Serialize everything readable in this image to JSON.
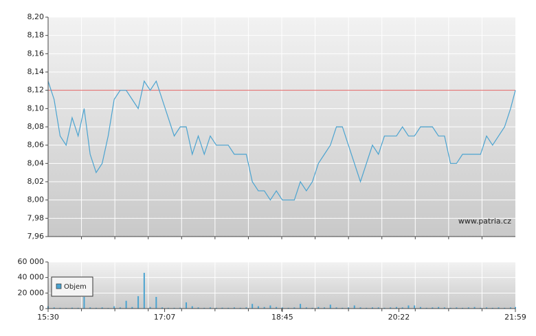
{
  "chart_data": [
    {
      "type": "line",
      "x": [
        "15:30",
        "15:35",
        "15:40",
        "15:45",
        "15:50",
        "15:55",
        "16:00",
        "16:05",
        "16:10",
        "16:15",
        "16:20",
        "16:25",
        "16:30",
        "16:35",
        "16:40",
        "16:45",
        "16:50",
        "16:55",
        "17:00",
        "17:05",
        "17:10",
        "17:15",
        "17:20",
        "17:25",
        "17:30",
        "17:35",
        "17:40",
        "17:45",
        "17:50",
        "17:55",
        "18:00",
        "18:05",
        "18:10",
        "18:15",
        "18:20",
        "18:25",
        "18:30",
        "18:35",
        "18:40",
        "18:45",
        "18:50",
        "18:55",
        "19:00",
        "19:05",
        "19:10",
        "19:15",
        "19:20",
        "19:25",
        "19:30",
        "19:35",
        "19:40",
        "19:45",
        "19:50",
        "19:55",
        "20:00",
        "20:05",
        "20:10",
        "20:15",
        "20:20",
        "20:25",
        "20:30",
        "20:35",
        "20:40",
        "20:45",
        "20:50",
        "20:55",
        "21:00",
        "21:05",
        "21:10",
        "21:15",
        "21:20",
        "21:25",
        "21:30",
        "21:35",
        "21:40",
        "21:45",
        "21:50",
        "21:55",
        "21:59"
      ],
      "series": [
        {
          "color": "#4aa3d0",
          "values": [
            8.13,
            8.11,
            8.07,
            8.06,
            8.09,
            8.07,
            8.1,
            8.05,
            8.03,
            8.04,
            8.07,
            8.11,
            8.12,
            8.12,
            8.11,
            8.1,
            8.13,
            8.12,
            8.13,
            8.11,
            8.09,
            8.07,
            8.08,
            8.08,
            8.05,
            8.07,
            8.05,
            8.07,
            8.06,
            8.06,
            8.06,
            8.05,
            8.05,
            8.05,
            8.02,
            8.01,
            8.01,
            8.0,
            8.01,
            8.0,
            8.0,
            8.0,
            8.02,
            8.01,
            8.02,
            8.04,
            8.05,
            8.06,
            8.08,
            8.08,
            8.06,
            8.04,
            8.02,
            8.04,
            8.06,
            8.05,
            8.07,
            8.07,
            8.07,
            8.08,
            8.07,
            8.07,
            8.08,
            8.08,
            8.08,
            8.07,
            8.07,
            8.04,
            8.04,
            8.05,
            8.05,
            8.05,
            8.05,
            8.07,
            8.06,
            8.07,
            8.08,
            8.1,
            8.12
          ]
        }
      ],
      "xlim": [
        "15:30",
        "21:59"
      ],
      "ylim": [
        7.96,
        8.2
      ],
      "yticks": [
        {
          "value": 7.96,
          "label": "7,96"
        },
        {
          "value": 7.98,
          "label": "7,98"
        },
        {
          "value": 8.0,
          "label": "8,00"
        },
        {
          "value": 8.02,
          "label": "8,02"
        },
        {
          "value": 8.04,
          "label": "8,04"
        },
        {
          "value": 8.06,
          "label": "8,06"
        },
        {
          "value": 8.08,
          "label": "8,08"
        },
        {
          "value": 8.1,
          "label": "8,10"
        },
        {
          "value": 8.12,
          "label": "8,12"
        },
        {
          "value": 8.14,
          "label": "8,14"
        },
        {
          "value": 8.16,
          "label": "8,16"
        },
        {
          "value": 8.18,
          "label": "8,18"
        },
        {
          "value": 8.2,
          "label": "8,20"
        }
      ],
      "reference_line": {
        "value": 8.12,
        "color": "#e06060"
      },
      "watermark": "www.patria.cz",
      "grid": true
    },
    {
      "type": "bar",
      "x": [
        "15:30",
        "15:35",
        "15:40",
        "15:45",
        "15:50",
        "15:55",
        "16:00",
        "16:05",
        "16:10",
        "16:15",
        "16:20",
        "16:25",
        "16:30",
        "16:35",
        "16:40",
        "16:45",
        "16:50",
        "16:55",
        "17:00",
        "17:05",
        "17:10",
        "17:15",
        "17:20",
        "17:25",
        "17:30",
        "17:35",
        "17:40",
        "17:45",
        "17:50",
        "17:55",
        "18:00",
        "18:05",
        "18:10",
        "18:15",
        "18:20",
        "18:25",
        "18:30",
        "18:35",
        "18:40",
        "18:45",
        "18:50",
        "18:55",
        "19:00",
        "19:05",
        "19:10",
        "19:15",
        "19:20",
        "19:25",
        "19:30",
        "19:35",
        "19:40",
        "19:45",
        "19:50",
        "19:55",
        "20:00",
        "20:05",
        "20:10",
        "20:15",
        "20:20",
        "20:25",
        "20:30",
        "20:35",
        "20:40",
        "20:45",
        "20:50",
        "20:55",
        "21:00",
        "21:05",
        "21:10",
        "21:15",
        "21:20",
        "21:25",
        "21:30",
        "21:35",
        "21:40",
        "21:45",
        "21:50",
        "21:55",
        "21:59"
      ],
      "series": [
        {
          "name": "Objem",
          "color": "#4aa3d0",
          "values": [
            3000,
            1500,
            1000,
            800,
            1200,
            1000,
            15000,
            1500,
            1000,
            1500,
            800,
            3000,
            1500,
            10000,
            2000,
            16000,
            46000,
            2000,
            15000,
            1500,
            1000,
            1000,
            1200,
            8000,
            3000,
            1500,
            1000,
            1500,
            1000,
            1200,
            1000,
            1500,
            1000,
            1500,
            6000,
            3000,
            2000,
            4000,
            2000,
            1500,
            1000,
            1500,
            6000,
            1500,
            1000,
            2000,
            1500,
            5000,
            1500,
            1000,
            1500,
            4000,
            1500,
            1000,
            1500,
            1500,
            1000,
            1500,
            2000,
            1500,
            4000,
            4000,
            2000,
            1000,
            1500,
            2000,
            1500,
            1000,
            1500,
            1000,
            1500,
            2000,
            1000,
            1500,
            1000,
            1500,
            1000,
            1500,
            2000
          ]
        }
      ],
      "xlim": [
        "15:30",
        "21:59"
      ],
      "xticks": [
        "15:30",
        "17:07",
        "18:45",
        "20:22",
        "21:59"
      ],
      "ylim": [
        0,
        60000
      ],
      "yticks": [
        {
          "value": 0,
          "label": "0"
        },
        {
          "value": 20000,
          "label": "20 000"
        },
        {
          "value": 40000,
          "label": "40 000"
        },
        {
          "value": 60000,
          "label": "60 000"
        }
      ],
      "legend": "top-left",
      "grid": true
    }
  ]
}
